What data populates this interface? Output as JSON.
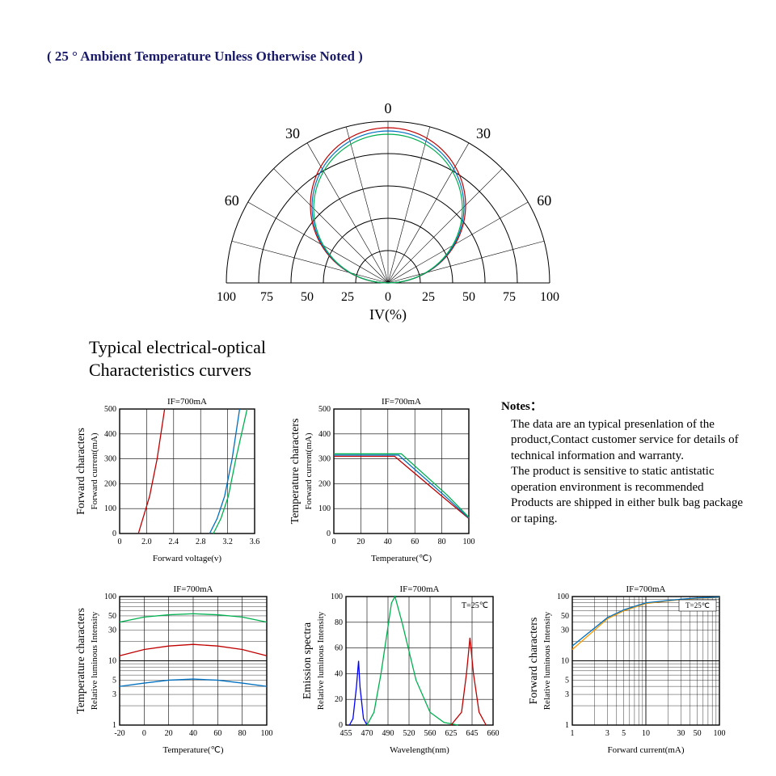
{
  "header_note": "( 25 ° Ambient Temperature Unless Otherwise Noted )",
  "section_title_line1": "Typical electrical-optical",
  "section_title_line2": "Characteristics curvers",
  "polar": {
    "angle_labels": [
      "0",
      "30",
      "30",
      "60",
      "60"
    ],
    "radial_labels": [
      "100",
      "75",
      "50",
      "25",
      "0",
      "25",
      "50",
      "75",
      "100"
    ],
    "axis_label": "IV(%)",
    "arc_colors": [
      "#c00000",
      "#0070c0",
      "#00b050"
    ],
    "grid_color": "#000000",
    "n_radial_rings": 5,
    "n_angle_rays": 13
  },
  "chart1": {
    "title": "IF=700mA",
    "ylabel_outer": "Forward characters",
    "ylabel_inner": "Forward current(mA)",
    "xlabel": "Forward voltage(v)",
    "xticks": [
      "0",
      "2.0",
      "2.4",
      "2.8",
      "3.2",
      "3.6"
    ],
    "yticks": [
      "0",
      "100",
      "200",
      "300",
      "400",
      "500"
    ],
    "series": [
      {
        "color": "#c00000",
        "points": [
          [
            2.05,
            0
          ],
          [
            2.1,
            50
          ],
          [
            2.2,
            150
          ],
          [
            2.3,
            300
          ],
          [
            2.4,
            500
          ]
        ]
      },
      {
        "color": "#0070c0",
        "points": [
          [
            3.0,
            0
          ],
          [
            3.1,
            60
          ],
          [
            3.2,
            150
          ],
          [
            3.3,
            300
          ],
          [
            3.4,
            500
          ]
        ]
      },
      {
        "color": "#00b050",
        "points": [
          [
            3.05,
            0
          ],
          [
            3.15,
            60
          ],
          [
            3.25,
            150
          ],
          [
            3.35,
            300
          ],
          [
            3.5,
            500
          ]
        ]
      }
    ],
    "xlim": [
      1.8,
      3.6
    ],
    "ylim": [
      0,
      500
    ]
  },
  "chart2": {
    "title": "IF=700mA",
    "ylabel_outer": "Temperature characters",
    "ylabel_inner": "Forward current(mA)",
    "xlabel": "Temperature(℃)",
    "xticks": [
      "0",
      "20",
      "40",
      "60",
      "80",
      "100"
    ],
    "yticks": [
      "0",
      "100",
      "200",
      "300",
      "400",
      "500"
    ],
    "series": [
      {
        "color": "#c00000",
        "points": [
          [
            0,
            310
          ],
          [
            45,
            310
          ],
          [
            80,
            150
          ],
          [
            100,
            60
          ]
        ]
      },
      {
        "color": "#0070c0",
        "points": [
          [
            0,
            315
          ],
          [
            48,
            315
          ],
          [
            82,
            152
          ],
          [
            100,
            62
          ]
        ]
      },
      {
        "color": "#00b050",
        "points": [
          [
            0,
            320
          ],
          [
            50,
            320
          ],
          [
            84,
            154
          ],
          [
            100,
            65
          ]
        ]
      }
    ],
    "xlim": [
      0,
      100
    ],
    "ylim": [
      0,
      500
    ]
  },
  "chart3": {
    "title": "IF=700mA",
    "ylabel_outer": "Temperature characters",
    "ylabel_inner": "Relative luminous Intensity",
    "xlabel": "Temperature(℃)",
    "xticks": [
      "-20",
      "0",
      "20",
      "40",
      "60",
      "80",
      "100"
    ],
    "yticks": [
      "1",
      "3",
      "5",
      "10",
      "30",
      "50",
      "100"
    ],
    "series": [
      {
        "color": "#00b050",
        "points_log": [
          [
            -20,
            40
          ],
          [
            0,
            48
          ],
          [
            20,
            52
          ],
          [
            40,
            54
          ],
          [
            60,
            52
          ],
          [
            80,
            48
          ],
          [
            100,
            40
          ]
        ]
      },
      {
        "color": "#c00000",
        "points_log": [
          [
            -20,
            12
          ],
          [
            0,
            15
          ],
          [
            20,
            17
          ],
          [
            40,
            18
          ],
          [
            60,
            17
          ],
          [
            80,
            15
          ],
          [
            100,
            12
          ]
        ]
      },
      {
        "color": "#0070c0",
        "points_log": [
          [
            -20,
            4
          ],
          [
            0,
            4.5
          ],
          [
            20,
            5
          ],
          [
            40,
            5.2
          ],
          [
            60,
            5
          ],
          [
            80,
            4.5
          ],
          [
            100,
            4
          ]
        ]
      }
    ],
    "xlim": [
      -20,
      100
    ],
    "ylim_log": [
      1,
      100
    ]
  },
  "chart4": {
    "title": "IF=700mA",
    "annot": "T=25℃",
    "ylabel_outer": "Emission spectra",
    "ylabel_inner": "Relative luminous Intensity",
    "xlabel": "Wavelength(nm)",
    "xticks": [
      "455",
      "470",
      "490",
      "520",
      "560",
      "625",
      "645",
      "660"
    ],
    "yticks": [
      "0",
      "20",
      "40",
      "60",
      "80",
      "100"
    ],
    "series": [
      {
        "color": "#0000ff",
        "points": [
          [
            455,
            0
          ],
          [
            460,
            5
          ],
          [
            465,
            30
          ],
          [
            468,
            50
          ],
          [
            470,
            30
          ],
          [
            475,
            5
          ],
          [
            480,
            0
          ]
        ]
      },
      {
        "color": "#00b050",
        "points": [
          [
            480,
            0
          ],
          [
            490,
            10
          ],
          [
            500,
            40
          ],
          [
            515,
            95
          ],
          [
            520,
            100
          ],
          [
            530,
            80
          ],
          [
            550,
            35
          ],
          [
            570,
            10
          ],
          [
            590,
            2
          ],
          [
            610,
            0
          ]
        ]
      },
      {
        "color": "#c00000",
        "points": [
          [
            600,
            0
          ],
          [
            615,
            10
          ],
          [
            622,
            40
          ],
          [
            627,
            68
          ],
          [
            632,
            40
          ],
          [
            640,
            10
          ],
          [
            650,
            0
          ]
        ]
      }
    ],
    "xlim": [
      450,
      660
    ],
    "ylim": [
      0,
      100
    ]
  },
  "chart5": {
    "title": "IF=700mA",
    "annot": "T=25℃",
    "ylabel_outer": "Forward characters",
    "ylabel_inner": "Relative luminous Intensity",
    "xlabel": "Forward current(mA)",
    "xticks": [
      "1",
      "3",
      "5",
      "10",
      "30",
      "50",
      "100"
    ],
    "yticks": [
      "1",
      "3",
      "5",
      "10",
      "30",
      "50",
      "100"
    ],
    "series": [
      {
        "color": "#ff9900",
        "points_loglog": [
          [
            1,
            15
          ],
          [
            3,
            45
          ],
          [
            5,
            60
          ],
          [
            10,
            78
          ],
          [
            30,
            90
          ],
          [
            50,
            94
          ],
          [
            100,
            97
          ]
        ]
      },
      {
        "color": "#0070c0",
        "points_loglog": [
          [
            1,
            17
          ],
          [
            3,
            47
          ],
          [
            5,
            62
          ],
          [
            10,
            80
          ],
          [
            30,
            91
          ],
          [
            50,
            95
          ],
          [
            100,
            98
          ]
        ]
      }
    ],
    "xlim_log": [
      1,
      100
    ],
    "ylim_log": [
      1,
      100
    ]
  },
  "notes": {
    "title": "Notes：",
    "body": "The data are an typical presenlation of the product,Contact customer service for details of technical information and warranty.\nThe product is sensitive to static antistatic operation environment is recommended\nProducts are shipped in either bulk bag package or taping."
  },
  "style": {
    "grid_color": "#000000",
    "text_color": "#000000",
    "fontsize_axis": 11,
    "fontsize_title": 11,
    "fontsize_label": 12
  }
}
